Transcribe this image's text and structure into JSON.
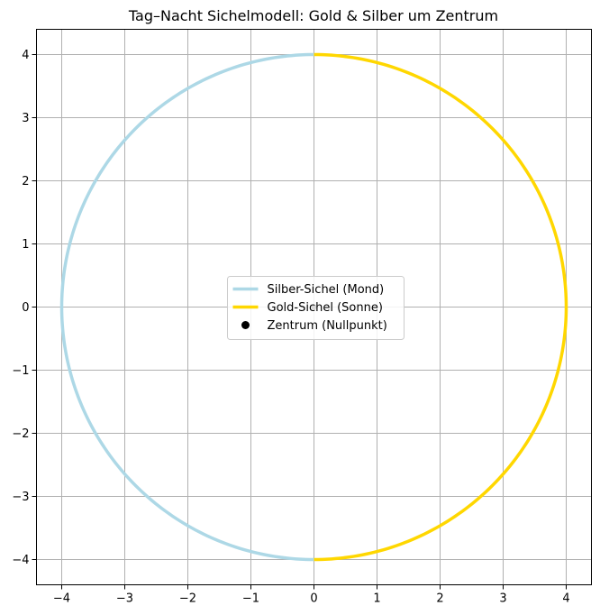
{
  "chart_data": {
    "type": "line",
    "title": "Tag–Nacht Sichelmodell: Gold & Silber um Zentrum",
    "xlabel": "",
    "ylabel": "",
    "xlim": [
      -4.4,
      4.4
    ],
    "ylim": [
      -4.4,
      4.4
    ],
    "x_ticks": [
      -4,
      -3,
      -2,
      -1,
      0,
      1,
      2,
      3,
      4
    ],
    "y_ticks": [
      -4,
      -3,
      -2,
      -1,
      0,
      1,
      2,
      3,
      4
    ],
    "x_tick_labels": [
      "−4",
      "−3",
      "−2",
      "−1",
      "0",
      "1",
      "2",
      "3",
      "4"
    ],
    "y_tick_labels": [
      "−4",
      "−3",
      "−2",
      "−1",
      "0",
      "1",
      "2",
      "3",
      "4"
    ],
    "grid": true,
    "legend_position": "center",
    "series": [
      {
        "name": "Silber-Sichel (Mond)",
        "kind": "arc",
        "color": "#add8e6",
        "center": [
          0,
          0
        ],
        "radius": 4,
        "angle_start_deg": 90,
        "angle_end_deg": 270
      },
      {
        "name": "Gold-Sichel (Sonne)",
        "kind": "arc",
        "color": "#ffd700",
        "center": [
          0,
          0
        ],
        "radius": 4,
        "angle_start_deg": -90,
        "angle_end_deg": 90
      },
      {
        "name": "Zentrum (Nullpunkt)",
        "kind": "point",
        "color": "#000000",
        "x": 0,
        "y": 0
      }
    ]
  }
}
